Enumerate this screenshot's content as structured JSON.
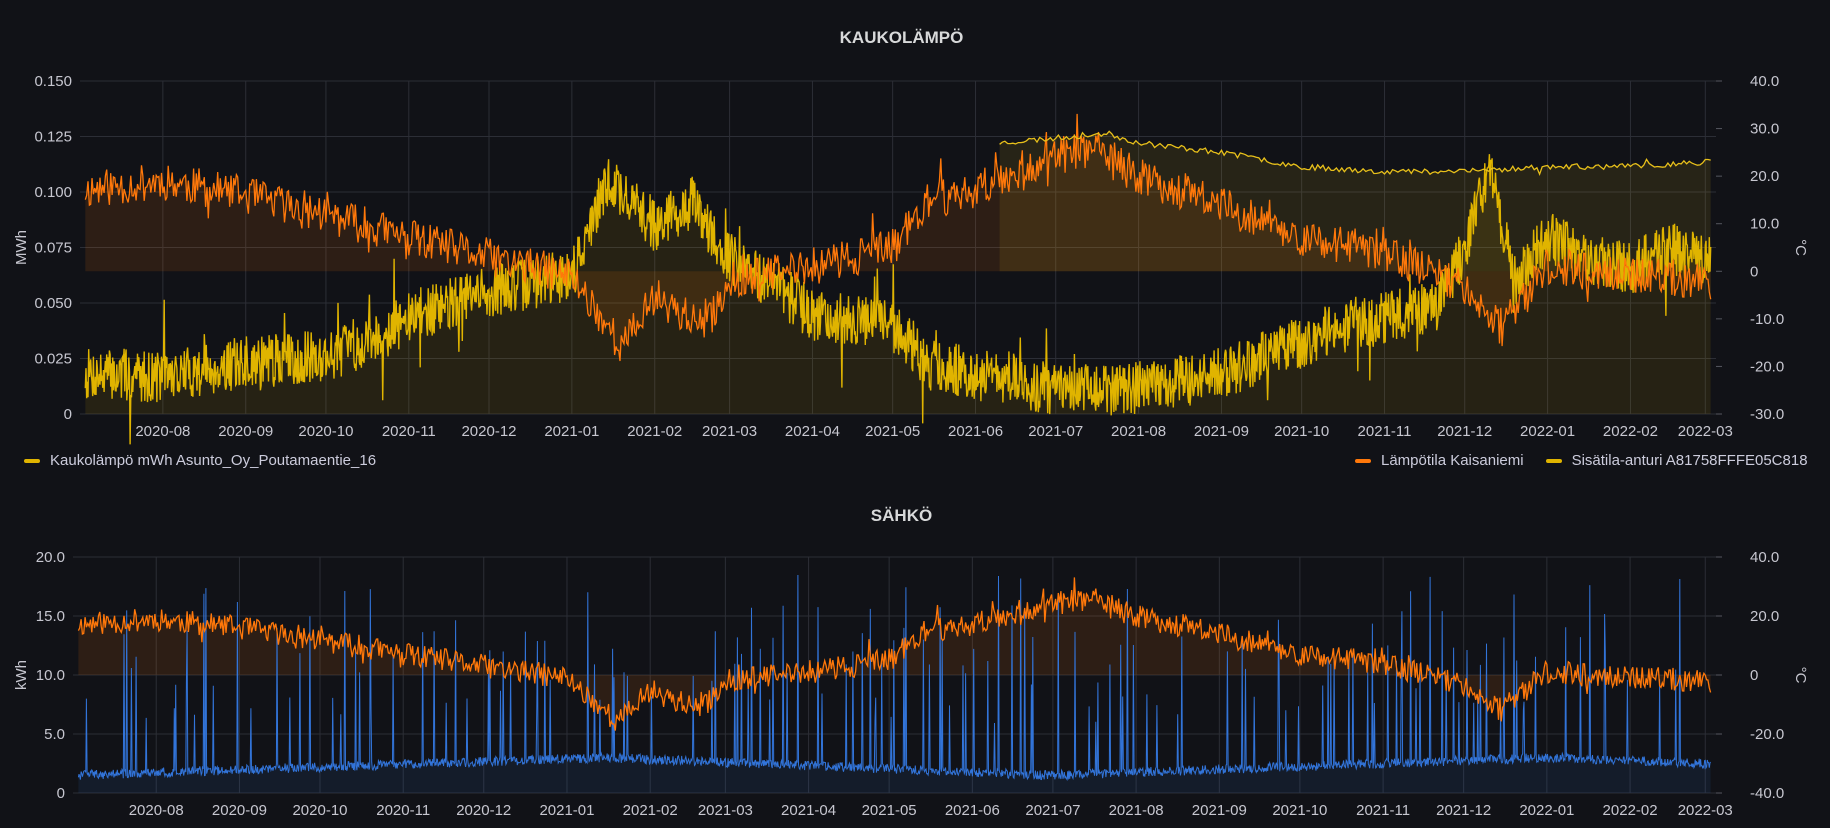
{
  "panels": {
    "district_heat": {
      "title": "KAUKOLÄMPÖ"
    },
    "electricity": {
      "title": "SÄHKÖ"
    }
  },
  "legend": {
    "district_heat_left": [
      {
        "label": "Kaukolämpö mWh Asunto_Oy_Poutamaentie_16",
        "color": "#e0b400"
      }
    ],
    "district_heat_right": [
      {
        "label": "Lämpötila Kaisaniemi",
        "color": "#ff780a"
      },
      {
        "label": "Sisätila-anturi A81758FFFE05C818",
        "color": "#e0b400"
      }
    ]
  },
  "colors": {
    "background": "#111217",
    "grid": "#2c2e36",
    "energy": "#e0b400",
    "outdoor_temp": "#ff780a",
    "indoor_temp": "#e8c01a",
    "electricity": "#3274d9"
  },
  "chart_data": [
    {
      "type": "line",
      "title": "KAUKOLÄMPÖ",
      "x_range": [
        "2020-07-01",
        "2022-03-05"
      ],
      "x_ticks": [
        "2020-08",
        "2020-09",
        "2020-10",
        "2020-11",
        "2020-12",
        "2021-01",
        "2021-02",
        "2021-03",
        "2021-04",
        "2021-05",
        "2021-06",
        "2021-07",
        "2021-08",
        "2021-09",
        "2021-10",
        "2021-11",
        "2021-12",
        "2022-01",
        "2022-02",
        "2022-03"
      ],
      "ylabel_left": "MWh",
      "ylabel_right": "°C",
      "ylim_left": [
        0,
        0.15
      ],
      "ylim_right": [
        -30,
        40
      ],
      "y_ticks_left": [
        "0",
        "0.025",
        "0.050",
        "0.075",
        "0.100",
        "0.125",
        "0.150"
      ],
      "y_ticks_right": [
        "-30.0",
        "-20.0",
        "-10.0",
        "0",
        "10.0",
        "20.0",
        "30.0",
        "40.0"
      ],
      "grid": true,
      "series": [
        {
          "name": "Kaukolämpö mWh Asunto_Oy_Poutamaentie_16",
          "axis": "left",
          "color": "#e0b400",
          "x": [
            "2020-07-01",
            "2020-08-01",
            "2020-09-01",
            "2020-10-01",
            "2020-10-20",
            "2020-11-05",
            "2020-12-01",
            "2021-01-01",
            "2021-01-15",
            "2021-02-01",
            "2021-02-15",
            "2021-03-01",
            "2021-03-15",
            "2021-04-01",
            "2021-05-01",
            "2021-05-15",
            "2021-06-01",
            "2021-06-15",
            "2021-07-01",
            "2021-08-01",
            "2021-09-01",
            "2021-09-15",
            "2021-10-01",
            "2021-10-15",
            "2021-11-01",
            "2021-11-20",
            "2021-12-01",
            "2021-12-10",
            "2021-12-20",
            "2022-01-01",
            "2022-01-15",
            "2022-02-01",
            "2022-02-15",
            "2022-03-01"
          ],
          "y": [
            0.018,
            0.017,
            0.023,
            0.026,
            0.035,
            0.045,
            0.055,
            0.063,
            0.105,
            0.085,
            0.095,
            0.07,
            0.06,
            0.045,
            0.04,
            0.022,
            0.018,
            0.016,
            0.01,
            0.012,
            0.018,
            0.025,
            0.032,
            0.04,
            0.043,
            0.048,
            0.075,
            0.11,
            0.06,
            0.08,
            0.07,
            0.065,
            0.075,
            0.07
          ]
        },
        {
          "name": "Lämpötila Kaisaniemi",
          "axis": "right",
          "color": "#ff780a",
          "x": [
            "2020-07-01",
            "2020-08-01",
            "2020-09-01",
            "2020-10-01",
            "2020-11-01",
            "2020-12-01",
            "2021-01-01",
            "2021-01-20",
            "2021-02-01",
            "2021-02-20",
            "2021-03-01",
            "2021-04-01",
            "2021-05-01",
            "2021-05-15",
            "2021-06-01",
            "2021-06-15",
            "2021-07-01",
            "2021-07-15",
            "2021-08-01",
            "2021-09-01",
            "2021-10-01",
            "2021-11-01",
            "2021-12-01",
            "2021-12-15",
            "2022-01-01",
            "2022-02-01",
            "2022-03-01"
          ],
          "y": [
            17,
            19,
            16,
            12,
            7,
            3,
            -1,
            -16,
            -5,
            -12,
            -2,
            1,
            5,
            15,
            17,
            21,
            24,
            26,
            20,
            14,
            7,
            4,
            -3,
            -12,
            1,
            -1,
            -2
          ]
        },
        {
          "name": "Sisätila-anturi A81758FFFE05C818",
          "axis": "right",
          "color": "#e8c01a",
          "x": [
            "2021-06-10",
            "2021-07-01",
            "2021-07-20",
            "2021-08-01",
            "2021-09-01",
            "2021-10-01",
            "2021-11-01",
            "2021-12-01",
            "2022-01-01",
            "2022-02-01",
            "2022-03-01"
          ],
          "y": [
            27,
            28,
            29,
            27,
            25,
            22,
            21,
            21,
            22,
            22,
            23
          ]
        }
      ]
    },
    {
      "type": "line",
      "title": "SÄHKÖ",
      "x_range": [
        "2020-07-01",
        "2022-03-05"
      ],
      "x_ticks": [
        "2020-08",
        "2020-09",
        "2020-10",
        "2020-11",
        "2020-12",
        "2021-01",
        "2021-02",
        "2021-03",
        "2021-04",
        "2021-05",
        "2021-06",
        "2021-07",
        "2021-08",
        "2021-09",
        "2021-10",
        "2021-11",
        "2021-12",
        "2022-01",
        "2022-02",
        "2022-03"
      ],
      "ylabel_left": "kWh",
      "ylabel_right": "°C",
      "ylim_left": [
        0,
        20
      ],
      "ylim_right": [
        -40,
        40
      ],
      "y_ticks_left": [
        "0",
        "5.0",
        "10.0",
        "15.0",
        "20.0"
      ],
      "y_ticks_right": [
        "-40.0",
        "-20.0",
        "0",
        "20.0",
        "40.0"
      ],
      "grid": true,
      "series": [
        {
          "name": "",
          "axis": "left",
          "color": "#3274d9",
          "baseline": 1.5,
          "spike_max": 18.5
        },
        {
          "name": "",
          "axis": "right",
          "color": "#ff780a",
          "x": [
            "2020-07-01",
            "2020-08-01",
            "2020-09-01",
            "2020-10-01",
            "2020-11-01",
            "2020-12-01",
            "2021-01-01",
            "2021-01-20",
            "2021-02-01",
            "2021-02-20",
            "2021-03-01",
            "2021-04-01",
            "2021-05-01",
            "2021-05-15",
            "2021-06-01",
            "2021-06-15",
            "2021-07-01",
            "2021-07-15",
            "2021-08-01",
            "2021-09-01",
            "2021-10-01",
            "2021-11-01",
            "2021-12-01",
            "2021-12-15",
            "2022-01-01",
            "2022-02-01",
            "2022-03-01"
          ],
          "y": [
            17,
            19,
            16,
            12,
            7,
            3,
            -1,
            -16,
            -5,
            -12,
            -2,
            1,
            5,
            15,
            17,
            21,
            24,
            26,
            20,
            14,
            7,
            4,
            -3,
            -12,
            1,
            -1,
            -2
          ]
        }
      ]
    }
  ]
}
